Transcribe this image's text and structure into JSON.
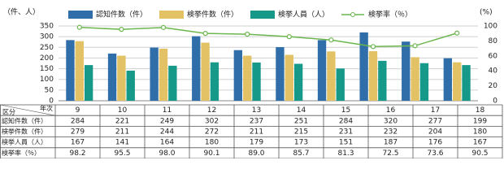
{
  "chart_data": {
    "type": "bar",
    "y_label": "（件、人）",
    "y2_label": "(%)",
    "categories": [
      "9",
      "10",
      "11",
      "12",
      "13",
      "14",
      "15",
      "16",
      "17",
      "18"
    ],
    "series": [
      {
        "name": "認知件数（件）",
        "color": "#2f6ea8",
        "values": [
          284,
          221,
          249,
          302,
          237,
          251,
          284,
          320,
          277,
          199
        ]
      },
      {
        "name": "検挙件数（件）",
        "color": "#e3c266",
        "values": [
          279,
          211,
          244,
          272,
          211,
          215,
          231,
          232,
          204,
          180
        ]
      },
      {
        "name": "検挙人員（人）",
        "color": "#17998a",
        "values": [
          167,
          141,
          164,
          180,
          179,
          173,
          151,
          187,
          176,
          167
        ]
      },
      {
        "name": "検挙率（％）",
        "type": "line",
        "axis": "y2",
        "color": "#6cb64e",
        "values": [
          98.2,
          95.5,
          98.0,
          90.1,
          89.0,
          85.7,
          81.3,
          72.5,
          73.6,
          90.5
        ],
        "value_labels": [
          "98.2",
          "95.5",
          "98.0",
          "90.1",
          "89.0",
          "85.7",
          "81.3",
          "72.5",
          "73.6",
          "90.5"
        ]
      }
    ],
    "ylim": [
      0,
      350
    ],
    "yticks": [
      0,
      50,
      100,
      150,
      200,
      250,
      300,
      350
    ],
    "y2lim": [
      0,
      100
    ],
    "y2ticks": [
      0,
      20,
      40,
      60,
      80,
      100
    ],
    "grid": true,
    "table_header": [
      "区分",
      "年次"
    ]
  }
}
